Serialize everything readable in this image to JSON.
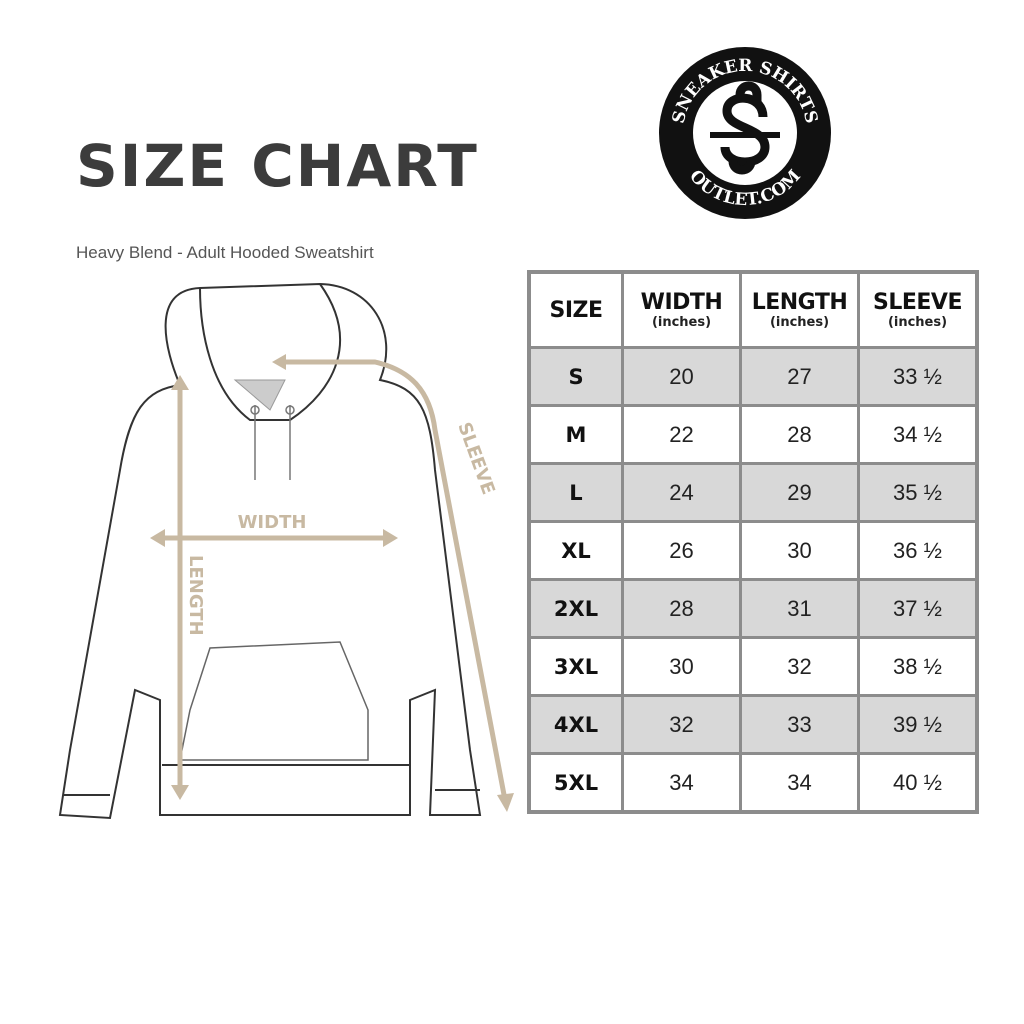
{
  "header": {
    "title": "SIZE CHART",
    "subtitle": "Heavy Blend - Adult Hooded Sweatshirt"
  },
  "logo": {
    "top_text": "SNEAKER SHIRTS",
    "bottom_text": "OUTLET.COM",
    "monogram": "SS"
  },
  "diagram": {
    "width_label": "WIDTH",
    "length_label": "LENGTH",
    "sleeve_label": "SLEEVE",
    "measure_color": "#c8b9a2"
  },
  "table": {
    "columns": [
      {
        "label": "SIZE",
        "unit": ""
      },
      {
        "label": "WIDTH",
        "unit": "(inches)"
      },
      {
        "label": "LENGTH",
        "unit": "(inches)"
      },
      {
        "label": "SLEEVE",
        "unit": "(inches)"
      }
    ],
    "rows": [
      [
        "S",
        "20",
        "27",
        "33 ½"
      ],
      [
        "M",
        "22",
        "28",
        "34 ½"
      ],
      [
        "L",
        "24",
        "29",
        "35 ½"
      ],
      [
        "XL",
        "26",
        "30",
        "36 ½"
      ],
      [
        "2XL",
        "28",
        "31",
        "37 ½"
      ],
      [
        "3XL",
        "30",
        "32",
        "38 ½"
      ],
      [
        "4XL",
        "32",
        "33",
        "39 ½"
      ],
      [
        "5XL",
        "34",
        "34",
        "40 ½"
      ]
    ]
  }
}
